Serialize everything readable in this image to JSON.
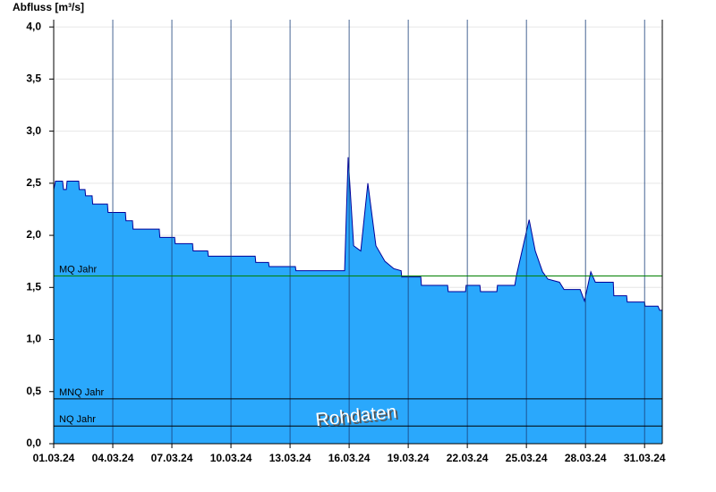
{
  "chart_data": {
    "type": "area",
    "ylabel": "Abfluss [m³/s]",
    "color": "#2aa8fc",
    "line_color": "#000099",
    "x": [
      1.0,
      1.09,
      1.45,
      1.5,
      1.64,
      1.68,
      2.27,
      2.3,
      2.59,
      2.62,
      2.95,
      2.98,
      3.73,
      3.76,
      4.64,
      4.67,
      5.0,
      5.03,
      6.36,
      6.39,
      7.14,
      7.17,
      8.05,
      8.08,
      8.82,
      8.85,
      11.23,
      11.26,
      11.91,
      11.94,
      13.27,
      13.3,
      15.77,
      15.95,
      16.23,
      16.59,
      16.95,
      17.36,
      17.82,
      18.27,
      18.64,
      18.67,
      19.64,
      19.67,
      21.0,
      21.03,
      21.91,
      21.94,
      22.64,
      22.67,
      23.5,
      23.53,
      24.41,
      24.5,
      25.14,
      25.45,
      25.82,
      26.09,
      26.68,
      26.91,
      27.73,
      27.95,
      28.27,
      28.5,
      29.41,
      29.44,
      30.09,
      30.12,
      31.0,
      31.03,
      31.68,
      31.77,
      31.9
    ],
    "values": [
      2.44,
      2.52,
      2.52,
      2.44,
      2.44,
      2.52,
      2.52,
      2.44,
      2.44,
      2.38,
      2.38,
      2.3,
      2.3,
      2.22,
      2.22,
      2.14,
      2.14,
      2.06,
      2.06,
      1.98,
      1.98,
      1.92,
      1.92,
      1.85,
      1.85,
      1.8,
      1.8,
      1.74,
      1.74,
      1.7,
      1.7,
      1.66,
      1.66,
      2.75,
      1.9,
      1.85,
      2.5,
      1.9,
      1.75,
      1.68,
      1.66,
      1.6,
      1.6,
      1.52,
      1.52,
      1.46,
      1.46,
      1.52,
      1.52,
      1.46,
      1.46,
      1.52,
      1.52,
      1.62,
      2.15,
      1.85,
      1.65,
      1.58,
      1.55,
      1.48,
      1.48,
      1.37,
      1.65,
      1.55,
      1.55,
      1.42,
      1.42,
      1.36,
      1.36,
      1.32,
      1.32,
      1.28,
      1.28
    ],
    "xlim": [
      1,
      31.9
    ],
    "ylim": [
      0,
      4.07
    ],
    "xticks": [
      {
        "value": 1,
        "label": "01.03.24"
      },
      {
        "value": 4,
        "label": "04.03.24"
      },
      {
        "value": 7,
        "label": "07.03.24"
      },
      {
        "value": 10,
        "label": "10.03.24"
      },
      {
        "value": 13,
        "label": "13.03.24"
      },
      {
        "value": 16,
        "label": "16.03.24"
      },
      {
        "value": 19,
        "label": "19.03.24"
      },
      {
        "value": 22,
        "label": "22.03.24"
      },
      {
        "value": 25,
        "label": "25.03.24"
      },
      {
        "value": 28,
        "label": "28.03.24"
      },
      {
        "value": 31,
        "label": "31.03.24"
      }
    ],
    "yticks": [
      {
        "value": 0,
        "label": "0,0"
      },
      {
        "value": 0.5,
        "label": "0,5"
      },
      {
        "value": 1,
        "label": "1,0"
      },
      {
        "value": 1.5,
        "label": "1,5"
      },
      {
        "value": 2,
        "label": "2,0"
      },
      {
        "value": 2.5,
        "label": "2,5"
      },
      {
        "value": 3,
        "label": "3,0"
      },
      {
        "value": 3.5,
        "label": "3,5"
      },
      {
        "value": 4,
        "label": "4,0"
      }
    ],
    "grid": true,
    "reference_lines": [
      {
        "label": "MQ Jahr",
        "value": 1.61,
        "color": "#008000"
      },
      {
        "label": "MNQ Jahr",
        "value": 0.43,
        "color": "#000000"
      },
      {
        "label": "NQ Jahr",
        "value": 0.17,
        "color": "#000000"
      }
    ],
    "annotation": "Rohdaten"
  }
}
